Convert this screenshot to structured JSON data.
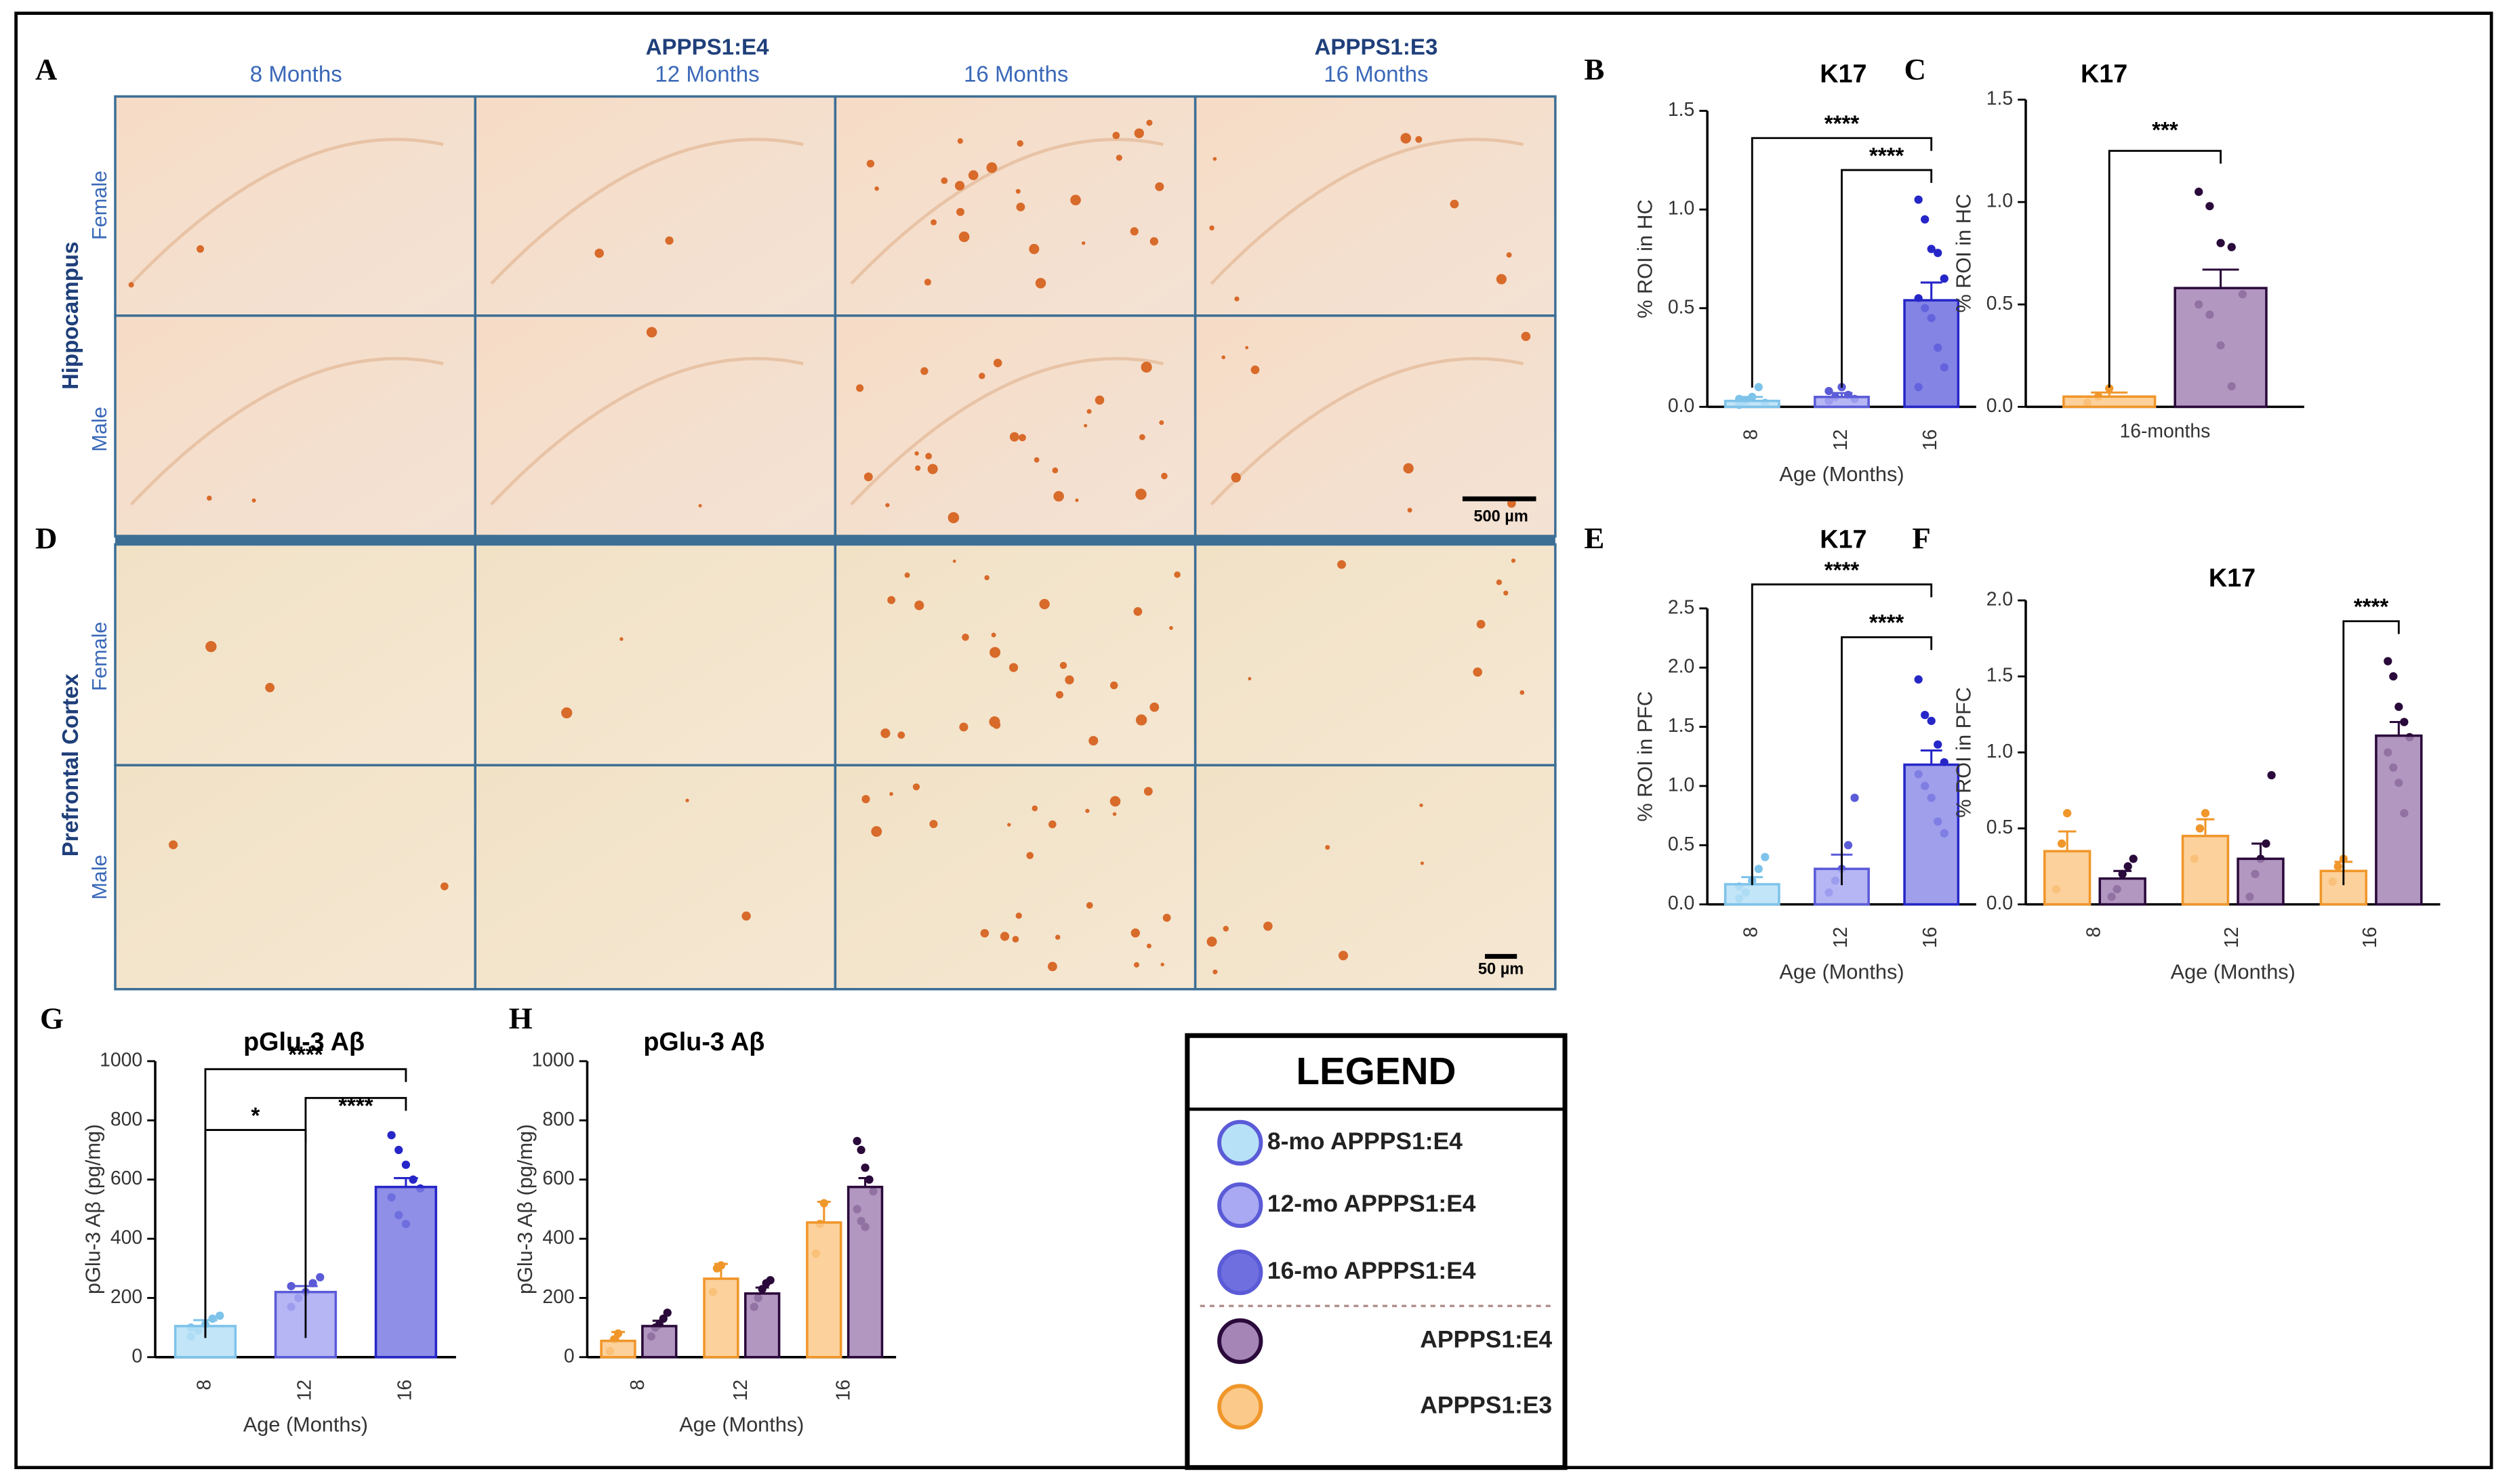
{
  "panel_letters": [
    "A",
    "B",
    "C",
    "D",
    "E",
    "F",
    "G",
    "H"
  ],
  "images": {
    "column_headers": [
      "8 Months",
      "APPPS1:E4",
      "12 Months",
      "16 Months",
      "APPPS1:E3",
      "16 Months"
    ],
    "regions": [
      "Hippocampus",
      "Prefrontal Cortex"
    ],
    "sexes": [
      "Female",
      "Male",
      "Female",
      "Male"
    ],
    "scale_bars": [
      "500 µm",
      "50 µm"
    ]
  },
  "legend": {
    "title": "LEGEND",
    "entries": [
      {
        "label": "8-mo APPPS1:E4",
        "color": "#b7e1f7"
      },
      {
        "label": "12-mo APPPS1:E4",
        "color": "#a9a9f3"
      },
      {
        "label": "16-mo APPPS1:E4",
        "color": "#6f6fe0"
      },
      {
        "label": "APPPS1:E4",
        "color": "#a585b5"
      },
      {
        "label": "APPPS1:E3",
        "color": "#fbc98a"
      }
    ]
  },
  "chart_data": [
    {
      "type": "bar",
      "title": "K17",
      "ylabel": "% ROI in HC",
      "xlabel": "Age (Months)",
      "categories": [
        "8",
        "12",
        "16"
      ],
      "values": [
        0.03,
        0.05,
        0.54
      ],
      "errors": [
        0.02,
        0.02,
        0.09
      ],
      "colors": [
        "#b7e1f7",
        "#a9a9f3",
        "#6f6fe0"
      ],
      "edge_colors": [
        "#7ec3ea",
        "#5b5bd8",
        "#2626c8"
      ],
      "points": [
        [
          0.01,
          0.03,
          0.05,
          0.1,
          0.02,
          0.04
        ],
        [
          0.03,
          0.05,
          0.1,
          0.06,
          0.04,
          0.08
        ],
        [
          1.05,
          0.95,
          0.8,
          0.78,
          0.65,
          0.55,
          0.5,
          0.45,
          0.3,
          0.2,
          0.1
        ]
      ],
      "ylim": [
        0,
        1.5
      ],
      "yticks": [
        {
          "value": 0,
          "label": "0.0"
        },
        0.5,
        {
          "value": 1,
          "label": "1.0"
        },
        1.5
      ],
      "annotations": [
        "****",
        "****"
      ]
    },
    {
      "type": "grouped_bar",
      "title": "K17",
      "ylabel": "% ROI in HC",
      "categories": [
        "16-months"
      ],
      "series": [
        {
          "color": "#fbc98a",
          "edge": "#f0962a",
          "values": [
            0.05
          ],
          "errors": [
            0.02
          ],
          "points": [
            [
              0.02,
              0.05,
              0.09
            ]
          ]
        },
        {
          "color": "#a585b5",
          "edge": "#2a0a3a",
          "values": [
            0.58
          ],
          "errors": [
            0.09
          ],
          "points": [
            [
              1.05,
              0.98,
              0.8,
              0.78,
              0.55,
              0.5,
              0.45,
              0.3,
              0.1
            ]
          ]
        }
      ],
      "ylim": [
        0,
        1.5
      ],
      "yticks": [
        {
          "value": 0,
          "label": "0.0"
        },
        0.5,
        {
          "value": 1,
          "label": "1.0"
        },
        1.5
      ],
      "annotations": [
        "***"
      ]
    },
    {
      "type": "bar",
      "title": "K17",
      "ylabel": "% ROI in PFC",
      "xlabel": "Age (Months)",
      "categories": [
        "8",
        "12",
        "16"
      ],
      "values": [
        0.17,
        0.3,
        1.18
      ],
      "errors": [
        0.06,
        0.12,
        0.12
      ],
      "colors": [
        "#b7e1f7",
        "#a9a9f3",
        "#8e8ee8"
      ],
      "edge_colors": [
        "#7ec3ea",
        "#5b5bd8",
        "#2626c8"
      ],
      "points": [
        [
          0.05,
          0.1,
          0.2,
          0.3,
          0.4,
          0.15
        ],
        [
          0.1,
          0.2,
          0.3,
          0.5,
          0.9
        ],
        [
          1.9,
          1.6,
          1.55,
          1.35,
          1.2,
          1.1,
          1.0,
          0.9,
          0.7,
          0.6
        ]
      ],
      "ylim": [
        0,
        2.5
      ],
      "yticks": [
        {
          "value": 0,
          "label": "0.0"
        },
        0.5,
        {
          "value": 1,
          "label": "1.0"
        },
        1.5,
        {
          "value": 2,
          "label": "2.0"
        },
        2.5
      ],
      "annotations": [
        "****",
        "****"
      ]
    },
    {
      "type": "grouped_bar",
      "title": "K17",
      "ylabel": "% ROI in PFC",
      "xlabel": "Age (Months)",
      "categories": [
        "8",
        "12",
        "16"
      ],
      "series": [
        {
          "color": "#fbc98a",
          "edge": "#f0962a",
          "values": [
            0.35,
            0.45,
            0.22
          ],
          "errors": [
            0.13,
            0.11,
            0.06
          ],
          "points": [
            [
              0.1,
              0.4,
              0.6
            ],
            [
              0.3,
              0.5,
              0.6
            ],
            [
              0.15,
              0.25,
              0.3
            ]
          ]
        },
        {
          "color": "#a585b5",
          "edge": "#2a0a3a",
          "values": [
            0.17,
            0.3,
            1.11
          ],
          "errors": [
            0.05,
            0.1,
            0.09
          ],
          "points": [
            [
              0.05,
              0.1,
              0.2,
              0.25,
              0.3
            ],
            [
              0.05,
              0.2,
              0.3,
              0.4,
              0.85
            ],
            [
              1.6,
              1.5,
              1.3,
              1.2,
              1.1,
              1.0,
              0.9,
              0.8,
              0.6
            ]
          ]
        }
      ],
      "ylim": [
        0,
        2.0
      ],
      "yticks": [
        {
          "value": 0,
          "label": "0.0"
        },
        0.5,
        {
          "value": 1,
          "label": "1.0"
        },
        1.5,
        {
          "value": 2,
          "label": "2.0"
        }
      ],
      "annotations": [
        "****"
      ]
    },
    {
      "type": "bar",
      "title": "pGlu-3 Aβ",
      "ylabel": "pGlu-3 Aβ (pg/mg)",
      "xlabel": "Age (Months)",
      "categories": [
        "8",
        "12",
        "16"
      ],
      "values": [
        105,
        220,
        575
      ],
      "errors": [
        20,
        20,
        30
      ],
      "colors": [
        "#b7e1f7",
        "#a9a9f3",
        "#7b7be3"
      ],
      "edge_colors": [
        "#7ec3ea",
        "#5b5bd8",
        "#2626c8"
      ],
      "points": [
        [
          70,
          90,
          110,
          130,
          140,
          100
        ],
        [
          170,
          200,
          220,
          250,
          270,
          240
        ],
        [
          750,
          700,
          650,
          600,
          570,
          540,
          480,
          450
        ]
      ],
      "ylim": [
        0,
        1000
      ],
      "yticks": [
        0,
        200,
        400,
        600,
        800,
        1000
      ],
      "annotations": [
        "*",
        "****",
        "****"
      ]
    },
    {
      "type": "grouped_bar",
      "title": "pGlu-3 Aβ",
      "ylabel": "pGlu-3 Aβ (pg/mg)",
      "xlabel": "Age (Months)",
      "categories": [
        "8",
        "12",
        "16"
      ],
      "series": [
        {
          "color": "#fbc98a",
          "edge": "#f0962a",
          "values": [
            55,
            265,
            455
          ],
          "errors": [
            30,
            50,
            70
          ],
          "points": [
            [
              20,
              60,
              80
            ],
            [
              220,
              300,
              310
            ],
            [
              350,
              450,
              520
            ]
          ]
        },
        {
          "color": "#a585b5",
          "edge": "#2a0a3a",
          "values": [
            105,
            215,
            575
          ],
          "errors": [
            18,
            20,
            30
          ],
          "points": [
            [
              70,
              100,
              110,
              130,
              150
            ],
            [
              170,
              200,
              230,
              250,
              260
            ],
            [
              730,
              700,
              640,
              600,
              560,
              500,
              460,
              440
            ]
          ]
        }
      ],
      "ylim": [
        0,
        1000
      ],
      "yticks": [
        0,
        200,
        400,
        600,
        800,
        1000
      ],
      "annotations": []
    }
  ]
}
